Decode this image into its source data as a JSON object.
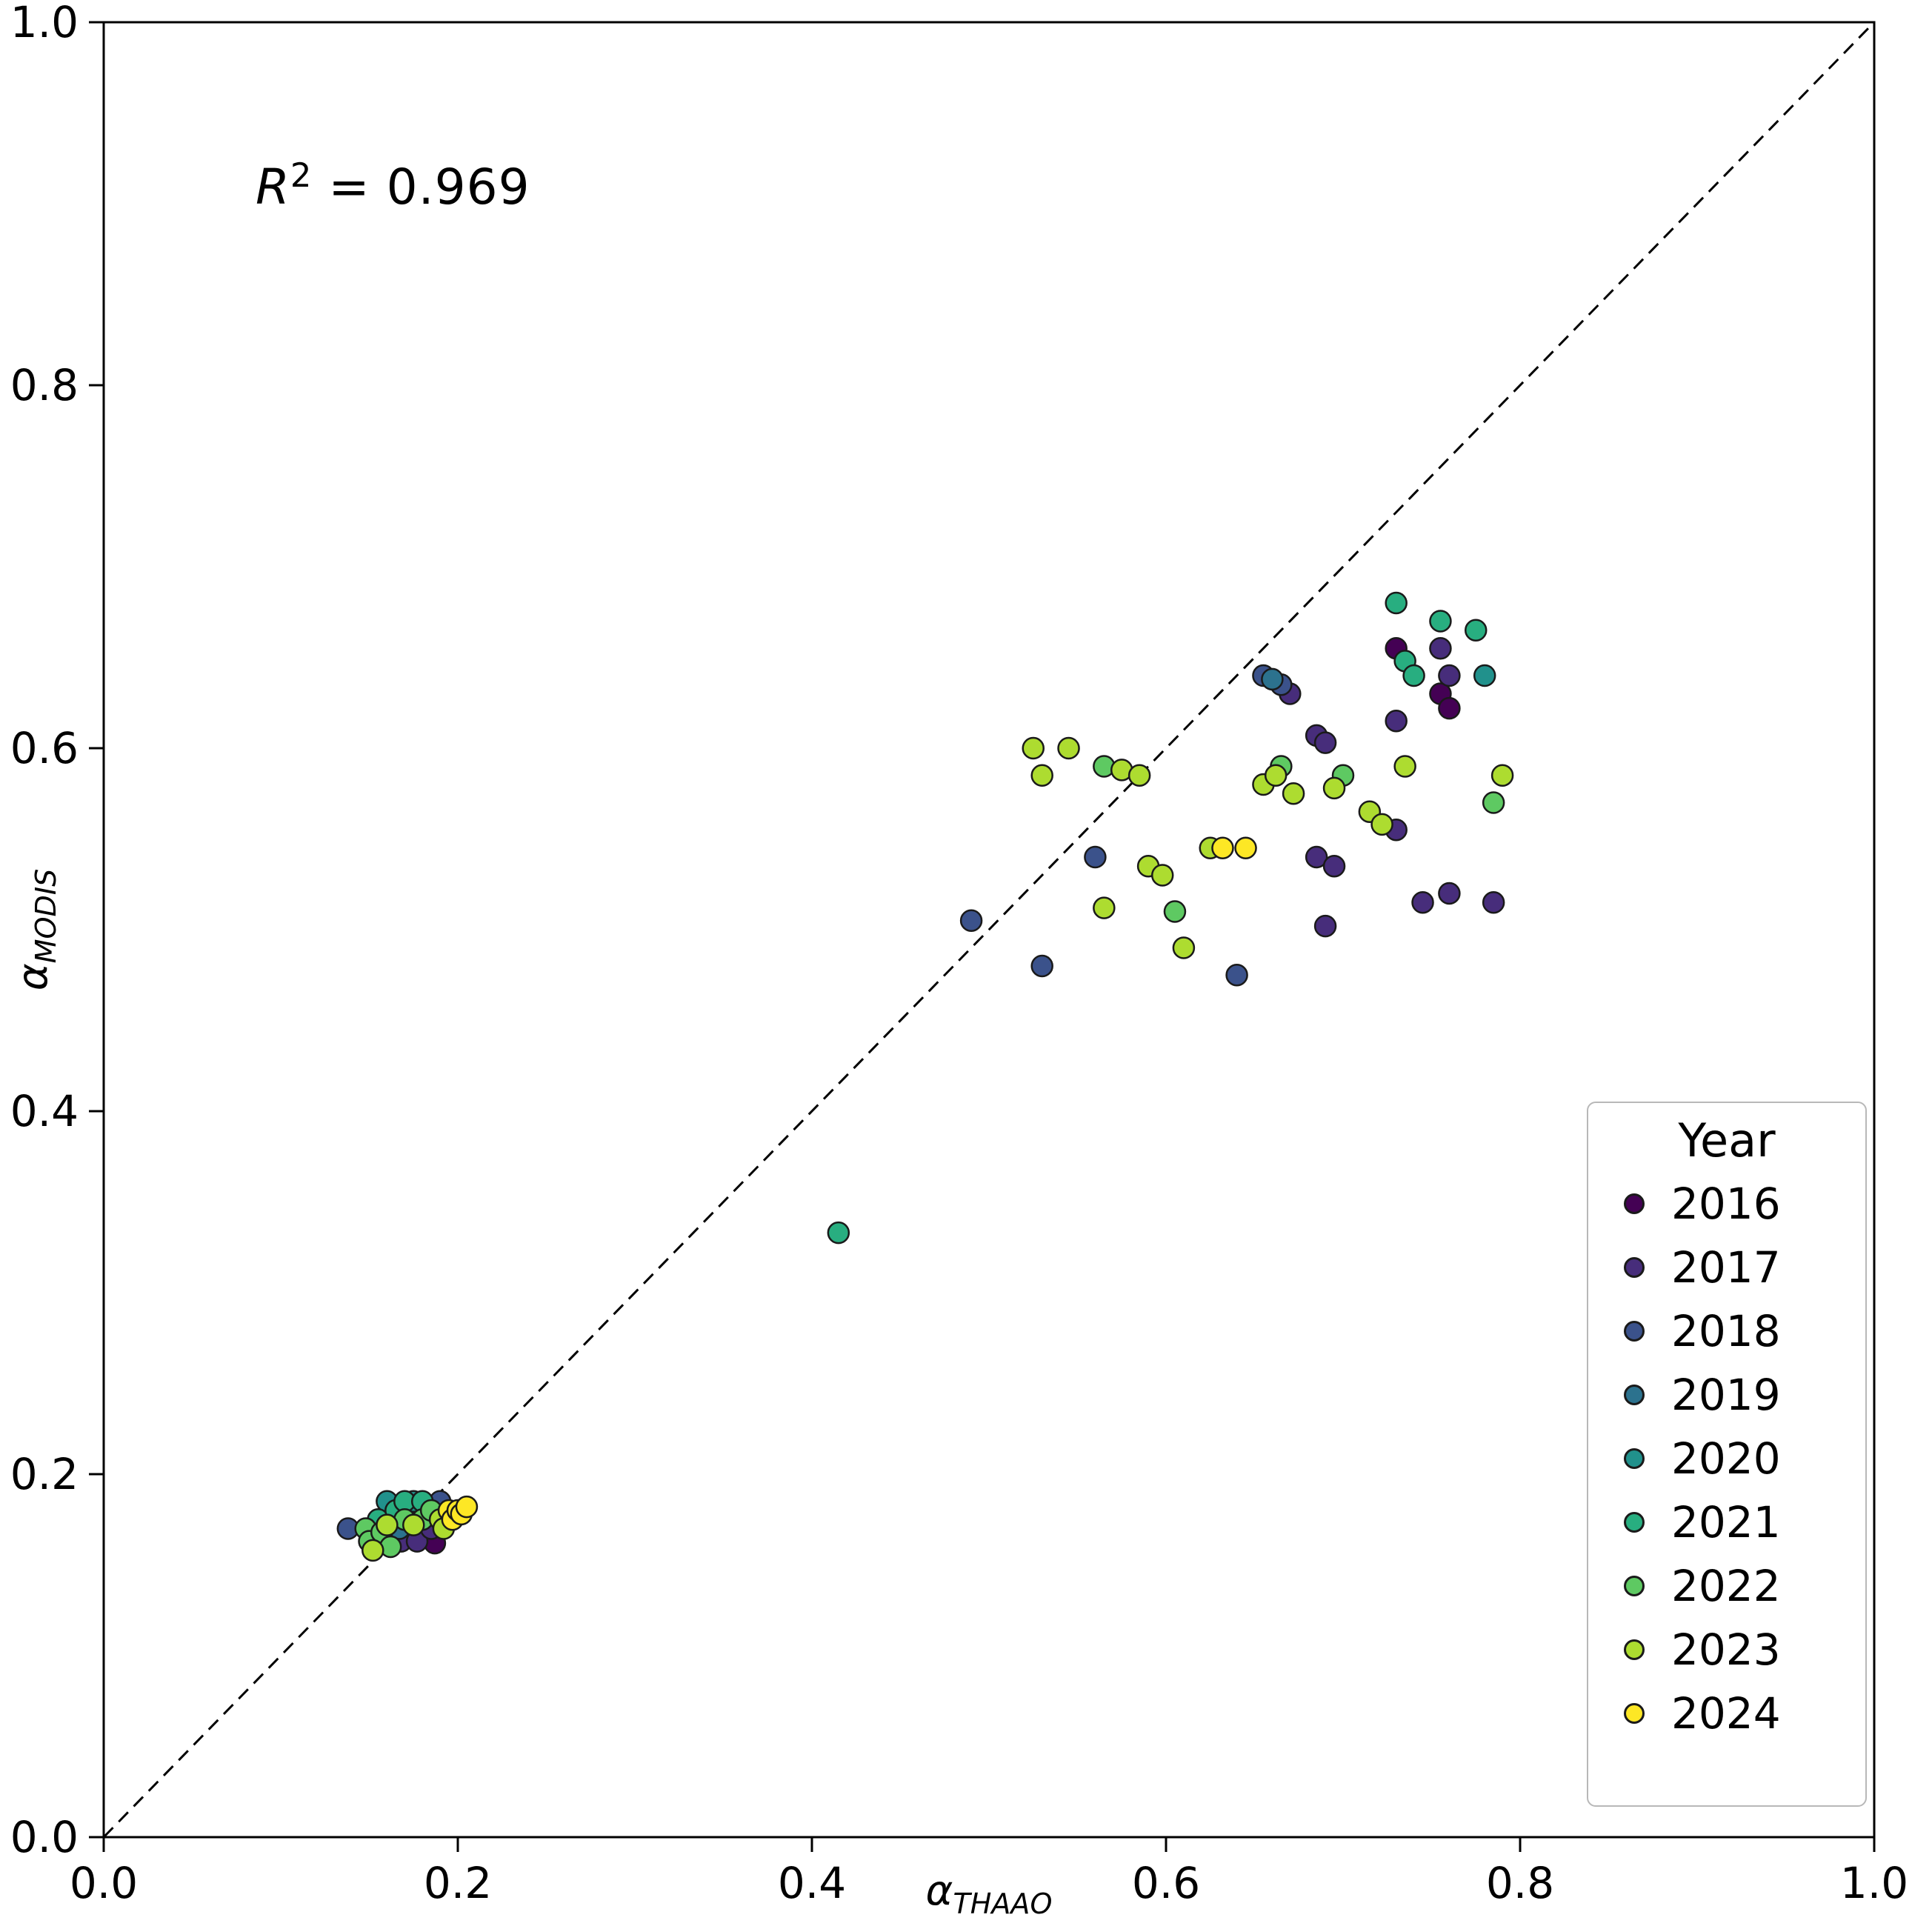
{
  "annotation": {
    "r_symbol": "R",
    "r_exp": "2",
    "r2_rest": "  =  0.969"
  },
  "axes": {
    "x_symbol": "α",
    "x_sub": "THAAO",
    "y_symbol": "α",
    "y_sub": "MODIS"
  },
  "legend": {
    "title": "Year"
  },
  "chart_data": {
    "type": "scatter",
    "title": "",
    "xlabel": "α_THAAO",
    "ylabel": "α_MODIS",
    "xlim": [
      0.0,
      1.0
    ],
    "ylim": [
      0.0,
      1.0
    ],
    "xticks": [
      0.0,
      0.2,
      0.4,
      0.6,
      0.8,
      1.0
    ],
    "yticks": [
      0.0,
      0.2,
      0.4,
      0.6,
      0.8,
      1.0
    ],
    "grid": false,
    "identity_line": {
      "style": "dashed",
      "color": "#000000",
      "from": [
        0.0,
        0.0
      ],
      "to": [
        1.0,
        1.0
      ]
    },
    "r_squared": 0.969,
    "legend_position": "lower right",
    "series": [
      {
        "name": "2016",
        "color": "#440154",
        "points": [
          [
            0.172,
            0.165
          ],
          [
            0.182,
            0.165
          ],
          [
            0.187,
            0.162
          ],
          [
            0.73,
            0.655
          ],
          [
            0.755,
            0.63
          ],
          [
            0.76,
            0.622
          ]
        ]
      },
      {
        "name": "2017",
        "color": "#472d7b",
        "points": [
          [
            0.168,
            0.163
          ],
          [
            0.177,
            0.163
          ],
          [
            0.185,
            0.17
          ],
          [
            0.67,
            0.63
          ],
          [
            0.685,
            0.607
          ],
          [
            0.69,
            0.603
          ],
          [
            0.685,
            0.54
          ],
          [
            0.695,
            0.535
          ],
          [
            0.69,
            0.502
          ],
          [
            0.73,
            0.615
          ],
          [
            0.73,
            0.555
          ],
          [
            0.745,
            0.515
          ],
          [
            0.755,
            0.655
          ],
          [
            0.76,
            0.64
          ],
          [
            0.76,
            0.52
          ],
          [
            0.785,
            0.515
          ]
        ]
      },
      {
        "name": "2018",
        "color": "#3b528b",
        "points": [
          [
            0.138,
            0.17
          ],
          [
            0.19,
            0.185
          ],
          [
            0.49,
            0.505
          ],
          [
            0.53,
            0.48
          ],
          [
            0.56,
            0.54
          ],
          [
            0.64,
            0.475
          ],
          [
            0.655,
            0.64
          ],
          [
            0.665,
            0.635
          ]
        ]
      },
      {
        "name": "2019",
        "color": "#2c728e",
        "points": [
          [
            0.167,
            0.17
          ],
          [
            0.175,
            0.178
          ],
          [
            0.66,
            0.638
          ]
        ]
      },
      {
        "name": "2020",
        "color": "#21918c",
        "points": [
          [
            0.16,
            0.185
          ],
          [
            0.175,
            0.185
          ],
          [
            0.78,
            0.64
          ]
        ]
      },
      {
        "name": "2021",
        "color": "#28ae80",
        "points": [
          [
            0.155,
            0.175
          ],
          [
            0.165,
            0.18
          ],
          [
            0.17,
            0.185
          ],
          [
            0.18,
            0.185
          ],
          [
            0.415,
            0.333
          ],
          [
            0.73,
            0.68
          ],
          [
            0.735,
            0.648
          ],
          [
            0.74,
            0.64
          ],
          [
            0.755,
            0.67
          ],
          [
            0.775,
            0.665
          ]
        ]
      },
      {
        "name": "2022",
        "color": "#5ec962",
        "points": [
          [
            0.148,
            0.17
          ],
          [
            0.15,
            0.163
          ],
          [
            0.157,
            0.168
          ],
          [
            0.162,
            0.16
          ],
          [
            0.17,
            0.175
          ],
          [
            0.18,
            0.175
          ],
          [
            0.185,
            0.18
          ],
          [
            0.565,
            0.59
          ],
          [
            0.605,
            0.51
          ],
          [
            0.665,
            0.59
          ],
          [
            0.7,
            0.585
          ],
          [
            0.785,
            0.57
          ]
        ]
      },
      {
        "name": "2023",
        "color": "#addc30",
        "points": [
          [
            0.152,
            0.158
          ],
          [
            0.16,
            0.172
          ],
          [
            0.175,
            0.172
          ],
          [
            0.19,
            0.175
          ],
          [
            0.192,
            0.17
          ],
          [
            0.525,
            0.6
          ],
          [
            0.53,
            0.585
          ],
          [
            0.545,
            0.6
          ],
          [
            0.575,
            0.588
          ],
          [
            0.585,
            0.585
          ],
          [
            0.565,
            0.512
          ],
          [
            0.59,
            0.535
          ],
          [
            0.598,
            0.53
          ],
          [
            0.61,
            0.49
          ],
          [
            0.625,
            0.545
          ],
          [
            0.655,
            0.58
          ],
          [
            0.662,
            0.585
          ],
          [
            0.672,
            0.575
          ],
          [
            0.695,
            0.578
          ],
          [
            0.715,
            0.565
          ],
          [
            0.722,
            0.558
          ],
          [
            0.735,
            0.59
          ],
          [
            0.79,
            0.585
          ]
        ]
      },
      {
        "name": "2024",
        "color": "#fde725",
        "points": [
          [
            0.195,
            0.18
          ],
          [
            0.197,
            0.175
          ],
          [
            0.2,
            0.18
          ],
          [
            0.202,
            0.178
          ],
          [
            0.205,
            0.182
          ],
          [
            0.632,
            0.545
          ],
          [
            0.645,
            0.545
          ]
        ]
      }
    ]
  }
}
